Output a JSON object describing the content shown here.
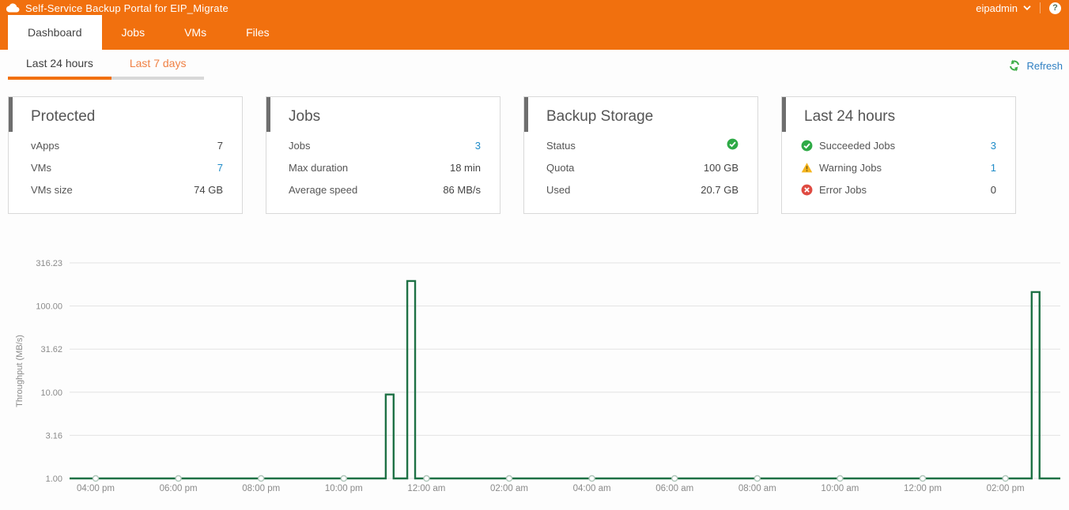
{
  "header": {
    "app_title": "Self-Service Backup Portal for EIP_Migrate",
    "user": "eipadmin",
    "help_label": "?",
    "tabs": [
      {
        "label": "Dashboard",
        "active": true
      },
      {
        "label": "Jobs",
        "active": false
      },
      {
        "label": "VMs",
        "active": false
      },
      {
        "label": "Files",
        "active": false
      }
    ]
  },
  "subnav": {
    "tabs": [
      {
        "label": "Last 24 hours",
        "active": true
      },
      {
        "label": "Last 7 days",
        "active": false
      }
    ],
    "refresh_label": "Refresh"
  },
  "cards": [
    {
      "title": "Protected",
      "rows": [
        {
          "label": "vApps",
          "value": "7",
          "link": false
        },
        {
          "label": "VMs",
          "value": "7",
          "link": true
        },
        {
          "label": "VMs size",
          "value": "74 GB",
          "link": false
        }
      ]
    },
    {
      "title": "Jobs",
      "rows": [
        {
          "label": "Jobs",
          "value": "3",
          "link": true
        },
        {
          "label": "Max duration",
          "value": "18 min",
          "link": false
        },
        {
          "label": "Average speed",
          "value": "86 MB/s",
          "link": false
        }
      ]
    },
    {
      "title": "Backup Storage",
      "rows": [
        {
          "label": "Status",
          "value_icon": "success",
          "link": false
        },
        {
          "label": "Quota",
          "value": "100 GB",
          "link": false
        },
        {
          "label": "Used",
          "value": "20.7 GB",
          "link": false
        }
      ]
    },
    {
      "title": "Last 24 hours",
      "rows": [
        {
          "icon": "success",
          "label": "Succeeded Jobs",
          "value": "3",
          "link": true
        },
        {
          "icon": "warning",
          "label": "Warning Jobs",
          "value": "1",
          "link": true
        },
        {
          "icon": "error",
          "label": "Error Jobs",
          "value": "0",
          "link": false
        }
      ]
    }
  ],
  "chart_data": {
    "type": "line",
    "title": "",
    "xlabel": "",
    "ylabel": "Throughput (MB/s)",
    "y_scale": "log",
    "ylim": [
      1.0,
      316.23
    ],
    "y_ticks": [
      "1.00",
      "3.16",
      "10.00",
      "31.62",
      "100.00",
      "316.23"
    ],
    "x_ticks": [
      "04:00 pm",
      "06:00 pm",
      "08:00 pm",
      "10:00 pm",
      "12:00 am",
      "02:00 am",
      "04:00 am",
      "06:00 am",
      "08:00 am",
      "10:00 am",
      "12:00 pm",
      "02:00 pm"
    ],
    "x_tick_interval_hours": 2,
    "baseline_mbps": 1.0,
    "spikes": [
      {
        "time": "11:05 pm",
        "hours_after_first_tick": 7.11,
        "value_mbps": 9.4
      },
      {
        "time": "11:40 pm",
        "hours_after_first_tick": 7.63,
        "value_mbps": 195
      },
      {
        "time": "02:45 pm",
        "hours_after_first_tick": 22.73,
        "value_mbps": 145
      }
    ],
    "spike_width_hours": 0.19,
    "grid": true,
    "line_color": "#1e7145",
    "grid_color": "#e3e3e3",
    "marker_fill": "#ffffff",
    "marker_stroke": "#b0c6ba",
    "axis_text_color": "#8a8a8a"
  },
  "colors": {
    "header_orange": "#f1700e",
    "subtab_inactive_orange": "#f08144",
    "link_blue": "#1e8bc8",
    "refresh_green": "#3fae49",
    "success_green": "#2eaa46",
    "warning_yellow": "#f5b51e",
    "error_red": "#df4b42",
    "chart_line_green": "#1e7145",
    "card_accent_gray": "#6e6e6e"
  }
}
